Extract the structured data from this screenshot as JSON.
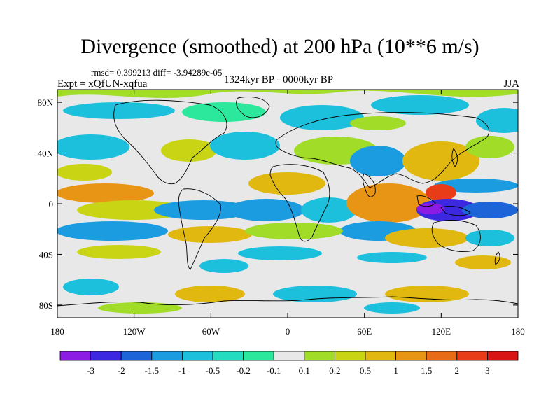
{
  "header": {
    "title": "Divergence (smoothed) at 200 hPa (10**6 m/s)",
    "stats": "rmsd= 0.399213 diff= -3.94289e-05",
    "experiment": "Expt = xQfUN-xqfua",
    "period": "1324kyr BP - 0000kyr BP",
    "season": "JJA"
  },
  "axes": {
    "lat_labels": [
      "80N",
      "40N",
      "0",
      "40S",
      "80S"
    ],
    "lat_values": [
      80,
      40,
      0,
      -40,
      -80
    ],
    "lon_labels": [
      "180",
      "120W",
      "60W",
      "0",
      "60E",
      "120E",
      "180"
    ],
    "lon_values": [
      -180,
      -120,
      -60,
      0,
      60,
      120,
      180
    ]
  },
  "colorbar": {
    "labels": [
      "-3",
      "-2",
      "-1.5",
      "-1",
      "-0.5",
      "-0.2",
      "-0.1",
      "0.1",
      "0.2",
      "0.5",
      "1",
      "1.5",
      "2",
      "3"
    ],
    "colors": [
      "#8c1ce4",
      "#3c28e0",
      "#1c64d8",
      "#1c9ce0",
      "#1cc0dc",
      "#24dcc0",
      "#2ce89c",
      "#e8e8e8",
      "#a0dc28",
      "#c8d414",
      "#e0b810",
      "#e89414",
      "#e86c18",
      "#e83c18",
      "#d81414"
    ]
  }
}
